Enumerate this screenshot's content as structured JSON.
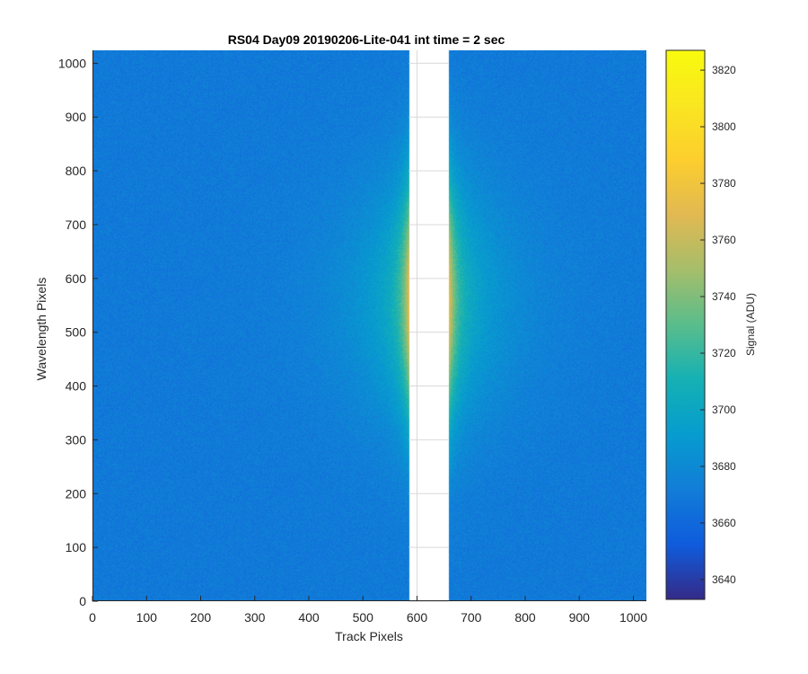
{
  "chart_data": {
    "type": "heatmap",
    "title": "RS04 Day09 20190206-Lite-041 int time = 2 sec",
    "xlabel": "Track Pixels",
    "ylabel": "Wavelength Pixels",
    "xlim": [
      0,
      1024
    ],
    "ylim": [
      0,
      1024
    ],
    "xticks": [
      0,
      100,
      200,
      300,
      400,
      500,
      600,
      700,
      800,
      900,
      1000
    ],
    "yticks": [
      0,
      100,
      200,
      300,
      400,
      500,
      600,
      700,
      800,
      900,
      1000
    ],
    "colormap": "parula",
    "colorbar": {
      "label": "Signal (ADU)",
      "clim": [
        3633,
        3827
      ],
      "ticks": [
        3640,
        3660,
        3680,
        3700,
        3720,
        3740,
        3760,
        3780,
        3800,
        3820
      ]
    },
    "background_level": 3670,
    "gap": {
      "x_range": [
        585,
        658
      ],
      "note_color": "#ffffff"
    },
    "glow": {
      "left_edge_x": 585,
      "right_edge_x": 658,
      "peak_value": 3775,
      "center_row": 560
    },
    "grid": true,
    "colors": {
      "axis": "#262626",
      "grid": "#d9d9d9",
      "background": "#ffffff"
    }
  }
}
